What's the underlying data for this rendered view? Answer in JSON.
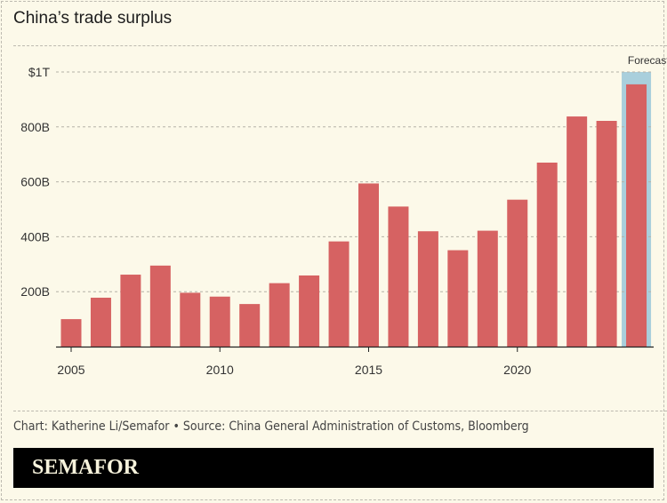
{
  "title": "China’s trade surplus",
  "credit": "Chart: Katherine Li/Semafor • Source: China General Administration of Customs, Bloomberg",
  "brand": "SEMAFOR",
  "colors": {
    "bar": "#d66262",
    "forecast_band": "#a9cfdc",
    "background": "#fcf9e9"
  },
  "chart_data": {
    "type": "bar",
    "title": "China’s trade surplus",
    "categories": [
      2005,
      2006,
      2007,
      2008,
      2009,
      2010,
      2011,
      2012,
      2013,
      2014,
      2015,
      2016,
      2017,
      2018,
      2019,
      2020,
      2021,
      2022,
      2023,
      2024
    ],
    "values": [
      100,
      178,
      262,
      295,
      196,
      182,
      155,
      231,
      259,
      383,
      594,
      510,
      420,
      351,
      422,
      535,
      670,
      838,
      822,
      955
    ],
    "unit": "USD billions",
    "ylim": [
      0,
      1000
    ],
    "yticks": [
      {
        "value": 200,
        "label": "200B"
      },
      {
        "value": 400,
        "label": "400B"
      },
      {
        "value": 600,
        "label": "600B"
      },
      {
        "value": 800,
        "label": "800B"
      },
      {
        "value": 1000,
        "label": "$1T"
      }
    ],
    "xticks": [
      2005,
      2010,
      2015,
      2020
    ],
    "grid": true,
    "forecast": {
      "category": 2024,
      "label": "Forecast"
    }
  }
}
